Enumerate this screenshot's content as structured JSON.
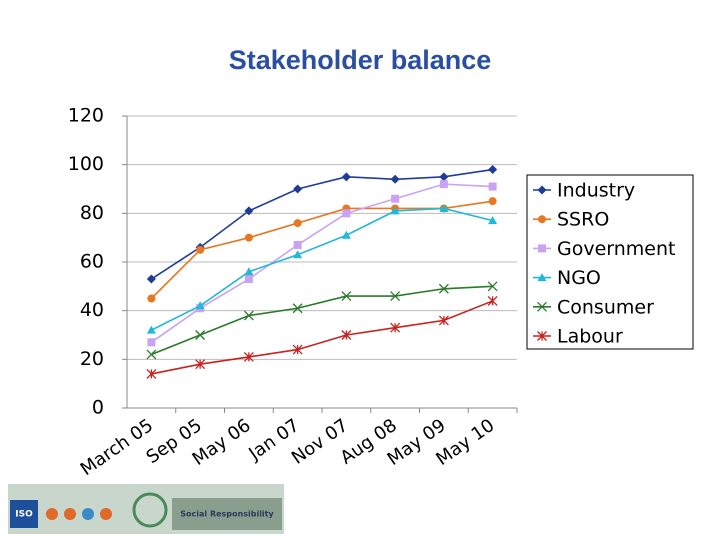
{
  "chart_data": {
    "type": "line",
    "title": "Stakeholder balance",
    "categories": [
      "March 05",
      "Sep 05",
      "May 06",
      "Jan 07",
      "Nov 07",
      "Aug 08",
      "May 09",
      "May 10"
    ],
    "series": [
      {
        "name": "Industry",
        "color": "#1f3c99",
        "marker": "diamond",
        "values": [
          53,
          66,
          81,
          90,
          95,
          94,
          95,
          98
        ]
      },
      {
        "name": "SSRO",
        "color": "#e87722",
        "marker": "circle",
        "values": [
          45,
          65,
          70,
          76,
          82,
          82,
          82,
          85
        ]
      },
      {
        "name": "Government",
        "color": "#c9a3f2",
        "marker": "square",
        "values": [
          27,
          41,
          53,
          67,
          80,
          86,
          92,
          91
        ]
      },
      {
        "name": "NGO",
        "color": "#22b8d8",
        "marker": "triangle",
        "values": [
          32,
          42,
          56,
          63,
          71,
          81,
          82,
          77
        ]
      },
      {
        "name": "Consumer",
        "color": "#2a7a2a",
        "marker": "x",
        "values": [
          22,
          30,
          38,
          41,
          46,
          46,
          49,
          50
        ]
      },
      {
        "name": "Labour",
        "color": "#c8221e",
        "marker": "star",
        "values": [
          14,
          18,
          21,
          24,
          30,
          33,
          36,
          44
        ]
      }
    ],
    "ylim": [
      0,
      120
    ],
    "yticks": [
      0,
      20,
      40,
      60,
      80,
      100,
      120
    ],
    "grid": true,
    "legend": "right"
  },
  "footer": {
    "logo_text": "ISO",
    "banner_text": "Social Responsibility"
  }
}
